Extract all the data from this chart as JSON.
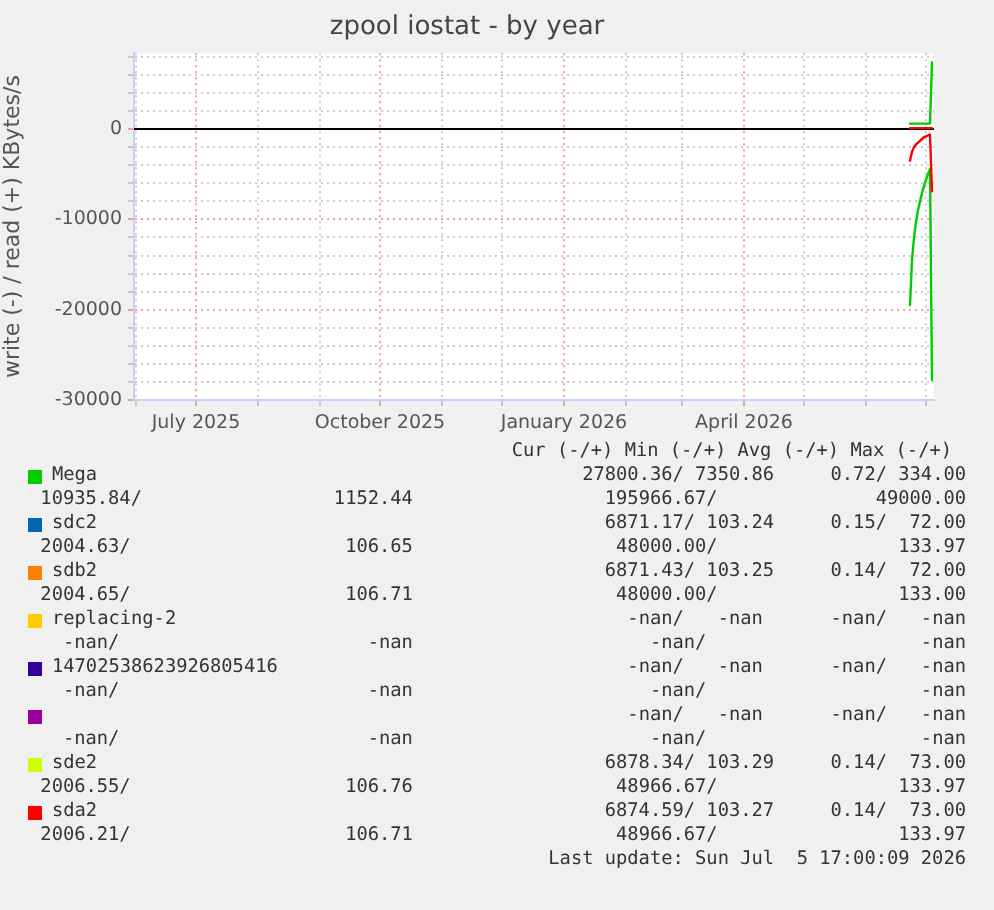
{
  "chart_data": {
    "type": "line",
    "title": "zpool iostat - by year",
    "ylabel": "write (-) / read (+) KBytes/s",
    "x": [
      "2026-06-23",
      "2026-06-24",
      "2026-06-25",
      "2026-06-26",
      "2026-06-27",
      "2026-06-28",
      "2026-06-29",
      "2026-06-30",
      "2026-07-01",
      "2026-07-02",
      "2026-07-03",
      "2026-07-04"
    ],
    "series": [
      {
        "name": "Mega",
        "color": "#00cc00",
        "values": [
          600,
          600,
          600,
          600,
          600,
          600,
          600,
          600,
          600,
          600,
          600,
          7400
        ]
      },
      {
        "color": "#00cc00",
        "values": [
          -19500,
          -14500,
          -12000,
          -10300,
          -9000,
          -8000,
          -7100,
          -6300,
          -5600,
          -5000,
          -4400,
          -27800
        ]
      },
      {
        "name": "sdc2",
        "color": "#0066b3",
        "values": [
          null,
          null,
          null,
          null,
          null,
          null,
          null,
          null,
          null,
          null,
          null,
          null
        ]
      },
      {
        "color": "#0066b3",
        "values": [
          null,
          null,
          null,
          null,
          null,
          null,
          null,
          null,
          null,
          null,
          null,
          null
        ]
      },
      {
        "name": "sdb2",
        "color": "#ff8000",
        "values": [
          null,
          null,
          null,
          null,
          null,
          null,
          null,
          null,
          null,
          null,
          null,
          null
        ]
      },
      {
        "color": "#ff8000",
        "values": [
          null,
          null,
          null,
          null,
          null,
          null,
          null,
          null,
          null,
          null,
          null,
          null
        ]
      },
      {
        "name": "replacing-2",
        "color": "#ffcc00",
        "values": [
          null,
          null,
          null,
          null,
          null,
          null,
          null,
          null,
          null,
          null,
          null,
          null
        ]
      },
      {
        "name": "14702538623926805416",
        "color": "#330099",
        "values": [
          null,
          null,
          null,
          null,
          null,
          null,
          null,
          null,
          null,
          null,
          null,
          null
        ]
      },
      {
        "color": "#990099",
        "values": [
          null,
          null,
          null,
          null,
          null,
          null,
          null,
          null,
          null,
          null,
          null,
          null
        ]
      },
      {
        "name": "sde2",
        "color": "#ccff00",
        "values": [
          null,
          null,
          null,
          null,
          null,
          null,
          null,
          null,
          null,
          null,
          null,
          null
        ]
      },
      {
        "color": "#ccff00",
        "values": [
          null,
          null,
          null,
          null,
          null,
          null,
          null,
          null,
          null,
          null,
          null,
          null
        ]
      },
      {
        "name": "sda2",
        "color": "#ff0000",
        "values": [
          100,
          100,
          100,
          100,
          100,
          100,
          100,
          100,
          100,
          100,
          100,
          100
        ]
      },
      {
        "color": "#ff0000",
        "values": [
          -3500,
          -2500,
          -2000,
          -1700,
          -1500,
          -1300,
          -1100,
          -900,
          -800,
          -700,
          -600,
          -6900
        ]
      }
    ],
    "xlim": [
      "2025-05-31",
      "2026-07-05"
    ],
    "xticks": [
      {
        "value": "2025-06-01",
        "label": null
      },
      {
        "value": "2025-07-01",
        "label": "July 2025"
      },
      {
        "value": "2025-08-01",
        "label": null
      },
      {
        "value": "2025-09-01",
        "label": null
      },
      {
        "value": "2025-10-01",
        "label": "October 2025"
      },
      {
        "value": "2025-11-01",
        "label": null
      },
      {
        "value": "2025-12-01",
        "label": null
      },
      {
        "value": "2026-01-01",
        "label": "January 2026"
      },
      {
        "value": "2026-02-01",
        "label": null
      },
      {
        "value": "2026-03-01",
        "label": null
      },
      {
        "value": "2026-04-01",
        "label": "April 2026"
      },
      {
        "value": "2026-05-01",
        "label": null
      },
      {
        "value": "2026-06-01",
        "label": null
      },
      {
        "value": "2026-07-01",
        "label": null
      }
    ],
    "ylim": [
      -30000,
      8400
    ],
    "yticks": [
      -30000,
      {
        "value": -28000,
        "label": null
      },
      {
        "value": -26000,
        "label": null
      },
      {
        "value": -24000,
        "label": null
      },
      {
        "value": -22000,
        "label": null
      },
      -20000,
      {
        "value": -18000,
        "label": null
      },
      {
        "value": -16000,
        "label": null
      },
      {
        "value": -14000,
        "label": null
      },
      {
        "value": -12000,
        "label": null
      },
      -10000,
      {
        "value": -8000,
        "label": null
      },
      {
        "value": -6000,
        "label": null
      },
      {
        "value": -4000,
        "label": null
      },
      {
        "value": -2000,
        "label": null
      },
      0,
      {
        "value": 2000,
        "label": null
      },
      {
        "value": 4000,
        "label": null
      },
      {
        "value": 6000,
        "label": null
      },
      {
        "value": 8000,
        "label": null
      }
    ],
    "grid": true,
    "legend": "bottom",
    "marker": "none",
    "line_style": "solid",
    "annotations": [
      "Cur (-/+) Min (-/+) Avg (-/+) Max (-/+)",
      "27800.36/ 7350.86     0.72/ 334.00",
      "10935.84/                 1152.44                 195966.67/              49000.00",
      "6871.17/ 103.24     0.15/  72.00",
      "2004.63/                   106.65                  48000.00/                133.97",
      "6871.43/ 103.25     0.14/  72.00",
      "2004.65/                   106.71                  48000.00/                133.00",
      "-nan/   -nan      -nan/   -nan",
      "  -nan/                      -nan                     -nan/                   -nan",
      "-nan/   -nan      -nan/   -nan",
      "  -nan/                      -nan                     -nan/                   -nan",
      "-nan/   -nan      -nan/   -nan",
      "  -nan/                      -nan                     -nan/                   -nan",
      "6878.34/ 103.29     0.14/  73.00",
      "2006.55/                   106.76                  48966.67/                133.97",
      "6874.59/ 103.27     0.14/  73.00",
      "2006.21/                   106.71                  48966.67/                133.97",
      "Last update: Sun Jul  5 17:00:09 2026"
    ]
  }
}
